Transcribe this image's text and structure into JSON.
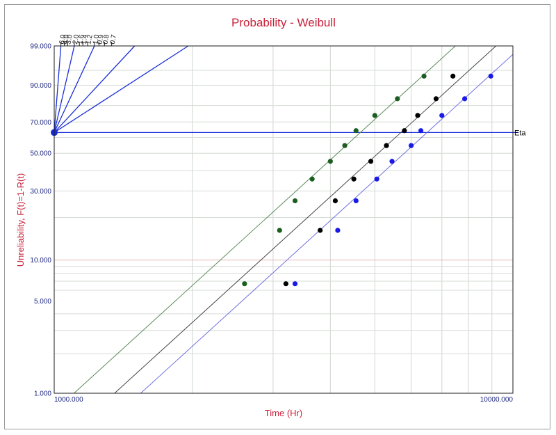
{
  "chart_data": {
    "type": "scatter",
    "title": "Probability - Weibull",
    "xlabel": "Time (Hr)",
    "ylabel": "Unreliability, F(t)=1-R(t)",
    "x_scale": "log",
    "y_scale": "weibull",
    "xlim": [
      1000,
      10000
    ],
    "ylim": [
      1,
      99
    ],
    "y_ticks": [
      "99.000",
      "90.000",
      "70.000",
      "50.000",
      "30.000",
      "10.000",
      "5.000",
      "1.000"
    ],
    "y_tick_values": [
      99,
      90,
      70,
      50,
      30,
      10,
      5,
      1
    ],
    "x_ticks": [
      "1000.000",
      "10000.000"
    ],
    "x_tick_values": [
      1000,
      10000
    ],
    "slope_scale": {
      "labels": [
        "6.0",
        "4.0",
        "3.0",
        "2.0",
        "1.6",
        "1.4",
        "1.2",
        "1.0",
        "0.9",
        "0.8",
        "0.7"
      ],
      "values": [
        6.0,
        4.0,
        3.0,
        2.0,
        1.6,
        1.4,
        1.2,
        1.0,
        0.9,
        0.8,
        0.7
      ],
      "drawn_lines": [
        6.0,
        2.0,
        1.0,
        0.5,
        0.3
      ],
      "eta_label": "Eta",
      "eta_unreliability": 63.2
    },
    "grid": true,
    "colors": {
      "title": "#c8203a",
      "tick_text": "#1a237e",
      "slope_lines": "#1a2ed8",
      "series_1": "#1b5e20",
      "series_2": "#000000",
      "series_3": "#1a1ae6",
      "fit_1": "#5a8a5a",
      "fit_2": "#444444",
      "fit_3": "#7070e0"
    },
    "series": [
      {
        "color_key": "series_1",
        "fit": {
          "beta": 3.2,
          "eta": 4650
        },
        "x": [
          2600,
          3100,
          3350,
          3650,
          4000,
          4300,
          4550,
          5000,
          5600,
          6400
        ],
        "y": [
          6.7,
          16.3,
          25.9,
          35.6,
          45.2,
          54.8,
          64.4,
          74.1,
          83.7,
          93.3
        ]
      },
      {
        "color_key": "series_2",
        "fit": {
          "beta": 3.2,
          "eta": 5700
        },
        "x": [
          3200,
          3800,
          4100,
          4500,
          4900,
          5300,
          5800,
          6200,
          6800,
          7400
        ],
        "y": [
          6.7,
          16.3,
          25.9,
          35.6,
          45.2,
          54.8,
          64.4,
          74.1,
          83.7,
          93.3
        ]
      },
      {
        "color_key": "series_3",
        "fit": {
          "beta": 3.2,
          "eta": 6500
        },
        "x": [
          3350,
          4150,
          4550,
          5050,
          5450,
          6000,
          6300,
          7000,
          7850,
          8950
        ],
        "y": [
          6.7,
          16.3,
          25.9,
          35.6,
          45.2,
          54.8,
          64.4,
          74.1,
          83.7,
          93.3
        ]
      }
    ]
  }
}
